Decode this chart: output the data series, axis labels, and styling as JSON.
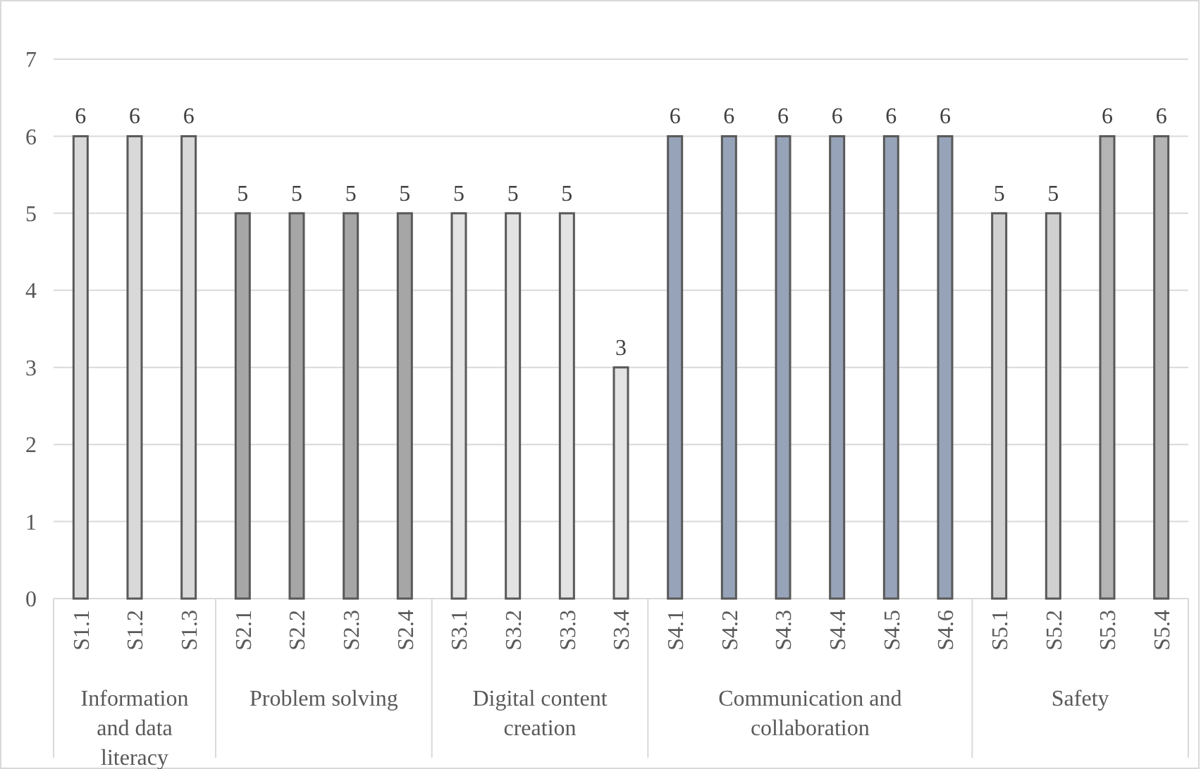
{
  "chart_data": {
    "type": "bar",
    "categories": [
      "S1.1",
      "S1.2",
      "S1.3",
      "S2.1",
      "S2.2",
      "S2.3",
      "S2.4",
      "S3.1",
      "S3.2",
      "S3.3",
      "S3.4",
      "S4.1",
      "S4.2",
      "S4.3",
      "S4.4",
      "S4.5",
      "S4.6",
      "S5.1",
      "S5.2",
      "S5.3",
      "S5.4"
    ],
    "series": [
      {
        "color": "#d9d9d9",
        "values": [
          6,
          6,
          6,
          null,
          null,
          null,
          null,
          null,
          null,
          null,
          null,
          null,
          null,
          null,
          null,
          null,
          null,
          null,
          null,
          null,
          null
        ]
      },
      {
        "color": "#a6a6a6",
        "values": [
          null,
          null,
          null,
          5,
          5,
          5,
          5,
          null,
          null,
          null,
          null,
          null,
          null,
          null,
          null,
          null,
          null,
          null,
          null,
          null,
          null
        ]
      },
      {
        "color": "#e3e3e3",
        "values": [
          null,
          null,
          null,
          null,
          null,
          null,
          null,
          5,
          5,
          5,
          3,
          null,
          null,
          null,
          null,
          null,
          null,
          null,
          null,
          null,
          null
        ]
      },
      {
        "color": "#97a3b8",
        "values": [
          null,
          null,
          null,
          null,
          null,
          null,
          null,
          null,
          null,
          null,
          null,
          6,
          6,
          6,
          6,
          6,
          6,
          null,
          null,
          null,
          null
        ]
      },
      {
        "colors": [
          null,
          null,
          null,
          null,
          null,
          null,
          null,
          null,
          null,
          null,
          null,
          null,
          null,
          null,
          null,
          null,
          null,
          "#d0d0d0",
          "#d0d0d0",
          "#b4b4b4",
          "#b4b4b4"
        ],
        "values": [
          null,
          null,
          null,
          null,
          null,
          null,
          null,
          null,
          null,
          null,
          null,
          null,
          null,
          null,
          null,
          null,
          null,
          5,
          5,
          6,
          6
        ]
      }
    ],
    "annotations": [
      "Information and data literacy",
      "Problem solving",
      "Digital content creation",
      "Communication and collaboration",
      "Safety"
    ],
    "ylim": [
      0,
      7
    ],
    "yticks": [
      0,
      1,
      2,
      3,
      4,
      5,
      6,
      7
    ],
    "grid": "y",
    "data_labels": true
  }
}
